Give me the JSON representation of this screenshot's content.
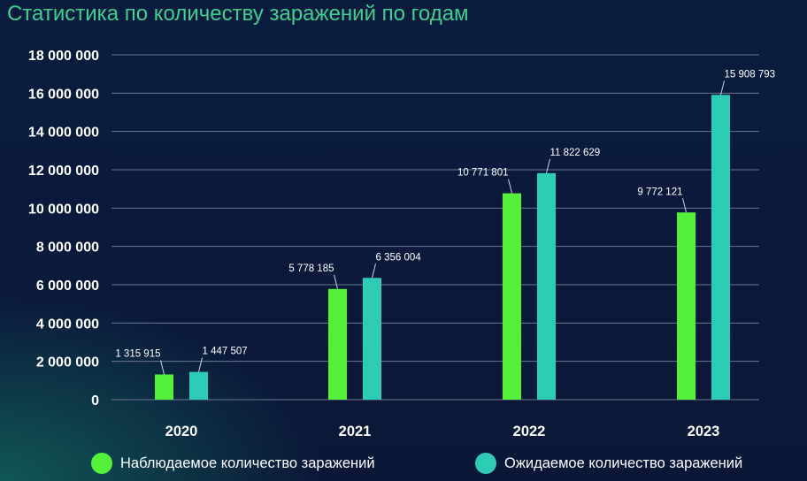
{
  "title": "Статистика по количеству заражений по годам",
  "colors": {
    "observed": "#55f03a",
    "expected": "#2ccdb4",
    "grid": "#6a7890",
    "title": "#3ecf8e",
    "text": "#ffffff"
  },
  "chart_data": {
    "type": "bar",
    "title": "Статистика по количеству заражений по годам",
    "xlabel": "",
    "ylabel": "",
    "ylim": [
      0,
      18000000
    ],
    "yticks": [
      0,
      2000000,
      4000000,
      6000000,
      8000000,
      10000000,
      12000000,
      14000000,
      16000000,
      18000000
    ],
    "ytick_labels": [
      "0",
      "2 000 000",
      "4 000 000",
      "6 000 000",
      "8 000 000",
      "10 000 000",
      "12 000 000",
      "14 000 000",
      "16 000 000",
      "18 000 000"
    ],
    "grid": true,
    "legend_position": "bottom",
    "categories": [
      "2020",
      "2021",
      "2022",
      "2023"
    ],
    "series": [
      {
        "name": "Наблюдаемое количество заражений",
        "color": "#55f03a",
        "values": [
          1315915,
          5778185,
          10771801,
          9772121
        ],
        "labels": [
          "1 315 915",
          "5 778 185",
          "10 771 801",
          "9 772 121"
        ]
      },
      {
        "name": "Ожидаемое количество заражений",
        "color": "#2ccdb4",
        "values": [
          1447507,
          6356004,
          11822629,
          15908793
        ],
        "labels": [
          "1 447 507",
          "6 356 004",
          "11 822 629",
          "15 908 793"
        ]
      }
    ]
  }
}
